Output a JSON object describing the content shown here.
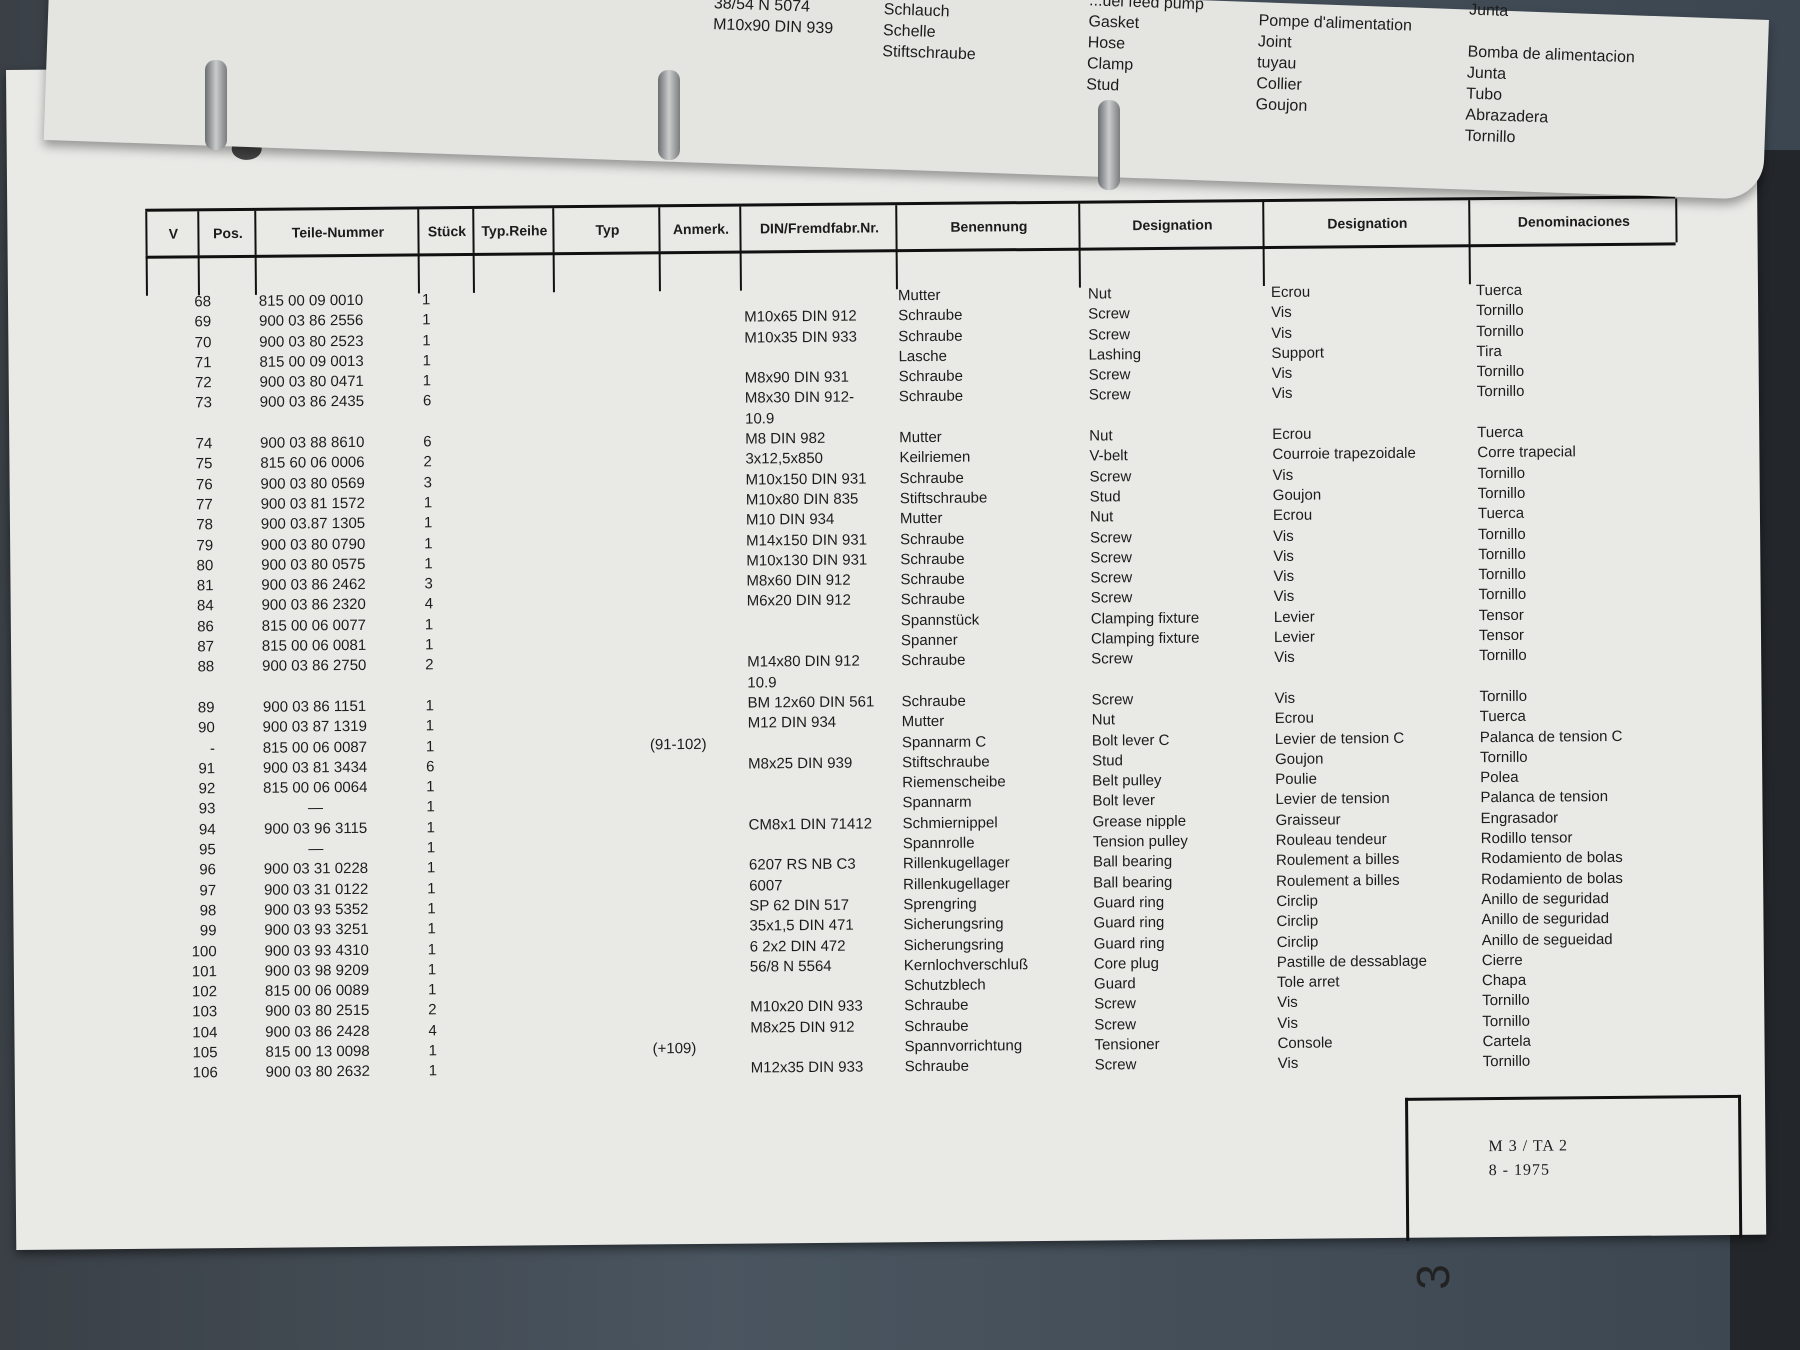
{
  "top_sheet": {
    "col1": [
      "38/54 N 5074",
      "M10x90 DIN 939"
    ],
    "col2": [
      "Schlauch",
      "Schelle",
      "Stiftschraube"
    ],
    "col3": [
      "...uel feed pump",
      "Gasket",
      "Hose",
      "Clamp",
      "Stud"
    ],
    "col4": [
      "Pompe d'alimentation",
      "Joint",
      "tuyau",
      "Collier",
      "Goujon"
    ],
    "col5": [
      "Junta",
      "",
      "Bomba de alimentacion",
      "Junta",
      "Tubo",
      "Abrazadera",
      "Tornillo"
    ]
  },
  "table": {
    "headers": [
      "V",
      "Pos.",
      "Teile-Nummer",
      "Stück",
      "Typ.Reihe",
      "Typ",
      "Anmerk.",
      "DIN/Fremdfabr.Nr.",
      "Benennung",
      "Designation",
      "Designation",
      "Denominaciones"
    ],
    "rows": [
      [
        "68",
        "815 00 09 0010",
        "1",
        "",
        "",
        "Mutter",
        "Nut",
        "Ecrou",
        "Tuerca"
      ],
      [
        "69",
        "900 03 86 2556",
        "1",
        "",
        "M10x65 DIN 912",
        "Schraube",
        "Screw",
        "Vis",
        "Tornillo"
      ],
      [
        "70",
        "900 03 80 2523",
        "1",
        "",
        "M10x35 DIN 933",
        "Schraube",
        "Screw",
        "Vis",
        "Tornillo"
      ],
      [
        "71",
        "815 00 09 0013",
        "1",
        "",
        "",
        "Lasche",
        "Lashing",
        "Support",
        "Tira"
      ],
      [
        "72",
        "900 03 80 0471",
        "1",
        "",
        "M8x90 DIN 931",
        "Schraube",
        "Screw",
        "Vis",
        "Tornillo"
      ],
      [
        "73",
        "900 03 86 2435",
        "6",
        "",
        "M8x30 DIN 912-",
        "Schraube",
        "Screw",
        "Vis",
        "Tornillo",
        "10.9"
      ],
      [
        "74",
        "900 03 88 8610",
        "6",
        "",
        "M8 DIN 982",
        "Mutter",
        "Nut",
        "Ecrou",
        "Tuerca"
      ],
      [
        "75",
        "815 60 06 0006",
        "2",
        "",
        "3x12,5x850",
        "Keilriemen",
        "V-belt",
        "Courroie trapezoidale",
        "Corre trapecial"
      ],
      [
        "76",
        "900 03 80 0569",
        "3",
        "",
        "M10x150 DIN 931",
        "Schraube",
        "Screw",
        "Vis",
        "Tornillo"
      ],
      [
        "77",
        "900 03 81 1572",
        "1",
        "",
        "M10x80 DIN 835",
        "Stiftschraube",
        "Stud",
        "Goujon",
        "Tornillo"
      ],
      [
        "78",
        "900 03.87 1305",
        "1",
        "",
        "M10 DIN 934",
        "Mutter",
        "Nut",
        "Ecrou",
        "Tuerca"
      ],
      [
        "79",
        "900 03 80 0790",
        "1",
        "",
        "M14x150 DIN 931",
        "Schraube",
        "Screw",
        "Vis",
        "Tornillo"
      ],
      [
        "80",
        "900 03 80 0575",
        "1",
        "",
        "M10x130 DIN 931",
        "Schraube",
        "Screw",
        "Vis",
        "Tornillo"
      ],
      [
        "81",
        "900 03 86 2462",
        "3",
        "",
        "M8x60 DIN 912",
        "Schraube",
        "Screw",
        "Vis",
        "Tornillo"
      ],
      [
        "84",
        "900 03 86 2320",
        "4",
        "",
        "M6x20 DIN 912",
        "Schraube",
        "Screw",
        "Vis",
        "Tornillo"
      ],
      [
        "86",
        "815 00 06 0077",
        "1",
        "",
        "",
        "Spannstück",
        "Clamping fixture",
        "Levier",
        "Tensor"
      ],
      [
        "87",
        "815 00 06 0081",
        "1",
        "",
        "",
        "Spanner",
        "Clamping fixture",
        "Levier",
        "Tensor"
      ],
      [
        "88",
        "900 03 86 2750",
        "2",
        "",
        "M14x80 DIN 912",
        "Schraube",
        "Screw",
        "Vis",
        "Tornillo",
        "10.9"
      ],
      [
        "89",
        "900 03 86 1151",
        "1",
        "",
        "BM 12x60 DIN 561",
        "Schraube",
        "Screw",
        "Vis",
        "Tornillo"
      ],
      [
        "90",
        "900 03 87 1319",
        "1",
        "",
        "M12 DIN 934",
        "Mutter",
        "Nut",
        "Ecrou",
        "Tuerca"
      ],
      [
        "-",
        "815 00 06 0087",
        "1",
        "(91-102)",
        "",
        "Spannarm C",
        "Bolt lever C",
        "Levier de tension C",
        "Palanca de tension C"
      ],
      [
        "91",
        "900 03 81 3434",
        "6",
        "",
        "M8x25 DIN 939",
        "Stiftschraube",
        "Stud",
        "Goujon",
        "Tornillo"
      ],
      [
        "92",
        "815 00 06 0064",
        "1",
        "",
        "",
        "Riemenscheibe",
        "Belt pulley",
        "Poulie",
        "Polea"
      ],
      [
        "93",
        "—",
        "1",
        "",
        "",
        "Spannarm",
        "Bolt lever",
        "Levier de tension",
        "Palanca de tension"
      ],
      [
        "94",
        "900 03 96 3115",
        "1",
        "",
        "CM8x1 DIN 71412",
        "Schmiernippel",
        "Grease nipple",
        "Graisseur",
        "Engrasador"
      ],
      [
        "95",
        "—",
        "1",
        "",
        "",
        "Spannrolle",
        "Tension pulley",
        "Rouleau tendeur",
        "Rodillo tensor"
      ],
      [
        "96",
        "900 03 31 0228",
        "1",
        "",
        "6207 RS NB C3",
        "Rillenkugellager",
        "Ball bearing",
        "Roulement a billes",
        "Rodamiento de bolas"
      ],
      [
        "97",
        "900 03 31 0122",
        "1",
        "",
        "6007",
        "Rillenkugellager",
        "Ball bearing",
        "Roulement a billes",
        "Rodamiento de bolas"
      ],
      [
        "98",
        "900 03 93 5352",
        "1",
        "",
        "SP 62 DIN 517",
        "Sprengring",
        "Guard ring",
        "Circlip",
        "Anillo de seguridad"
      ],
      [
        "99",
        "900 03 93 3251",
        "1",
        "",
        "35x1,5 DIN 471",
        "Sicherungsring",
        "Guard ring",
        "Circlip",
        "Anillo de seguridad"
      ],
      [
        "100",
        "900 03 93 4310",
        "1",
        "",
        "6 2x2 DIN 472",
        "Sicherungsring",
        "Guard ring",
        "Circlip",
        "Anillo de segueidad"
      ],
      [
        "101",
        "900 03 98 9209",
        "1",
        "",
        "56/8 N 5564",
        "Kernlochverschluß",
        "Core plug",
        "Pastille de dessablage",
        "Cierre"
      ],
      [
        "102",
        "815 00 06 0089",
        "1",
        "",
        "",
        "Schutzblech",
        "Guard",
        "Tole arret",
        "Chapa"
      ],
      [
        "103",
        "900 03 80 2515",
        "2",
        "",
        "M10x20 DIN 933",
        "Schraube",
        "Screw",
        "Vis",
        "Tornillo"
      ],
      [
        "104",
        "900 03 86 2428",
        "4",
        "",
        "M8x25 DIN 912",
        "Schraube",
        "Screw",
        "Vis",
        "Tornillo"
      ],
      [
        "105",
        "815 00 13 0098",
        "1",
        "(+109)",
        "",
        "Spannvorrichtung",
        "Tensioner",
        "Console",
        "Cartela"
      ],
      [
        "106",
        "900 03 80 2632",
        "1",
        "",
        "M12x35 DIN 933",
        "Schraube",
        "Screw",
        "Vis",
        "Tornillo"
      ]
    ]
  },
  "stamp": {
    "code": "M 3 / TA 2",
    "date": "8 - 1975"
  },
  "tab_label": "3"
}
